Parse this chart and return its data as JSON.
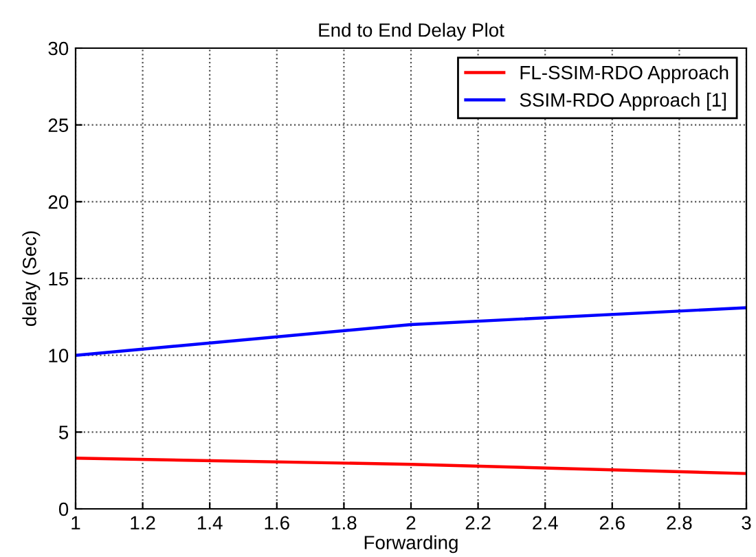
{
  "chart_data": {
    "type": "line",
    "title": "End to End Delay Plot",
    "xlabel": "Forwarding",
    "ylabel": "delay (Sec)",
    "x": [
      1,
      2,
      3
    ],
    "series": [
      {
        "name": "FL-SSIM-RDO Approach",
        "color": "#ff0000",
        "values": [
          3.3,
          2.9,
          2.3
        ]
      },
      {
        "name": "SSIM-RDO Approach [1]",
        "color": "#0000ff",
        "values": [
          10,
          12,
          13.1
        ]
      }
    ],
    "xlim": [
      1,
      3
    ],
    "xticks": [
      1,
      1.2,
      1.4,
      1.6,
      1.8,
      2,
      2.2,
      2.4,
      2.6,
      2.8,
      3
    ],
    "ylim": [
      0,
      30
    ],
    "yticks": [
      0,
      5,
      10,
      15,
      20,
      25,
      30
    ],
    "grid": true,
    "legend": "top right",
    "line_style": "solid"
  }
}
